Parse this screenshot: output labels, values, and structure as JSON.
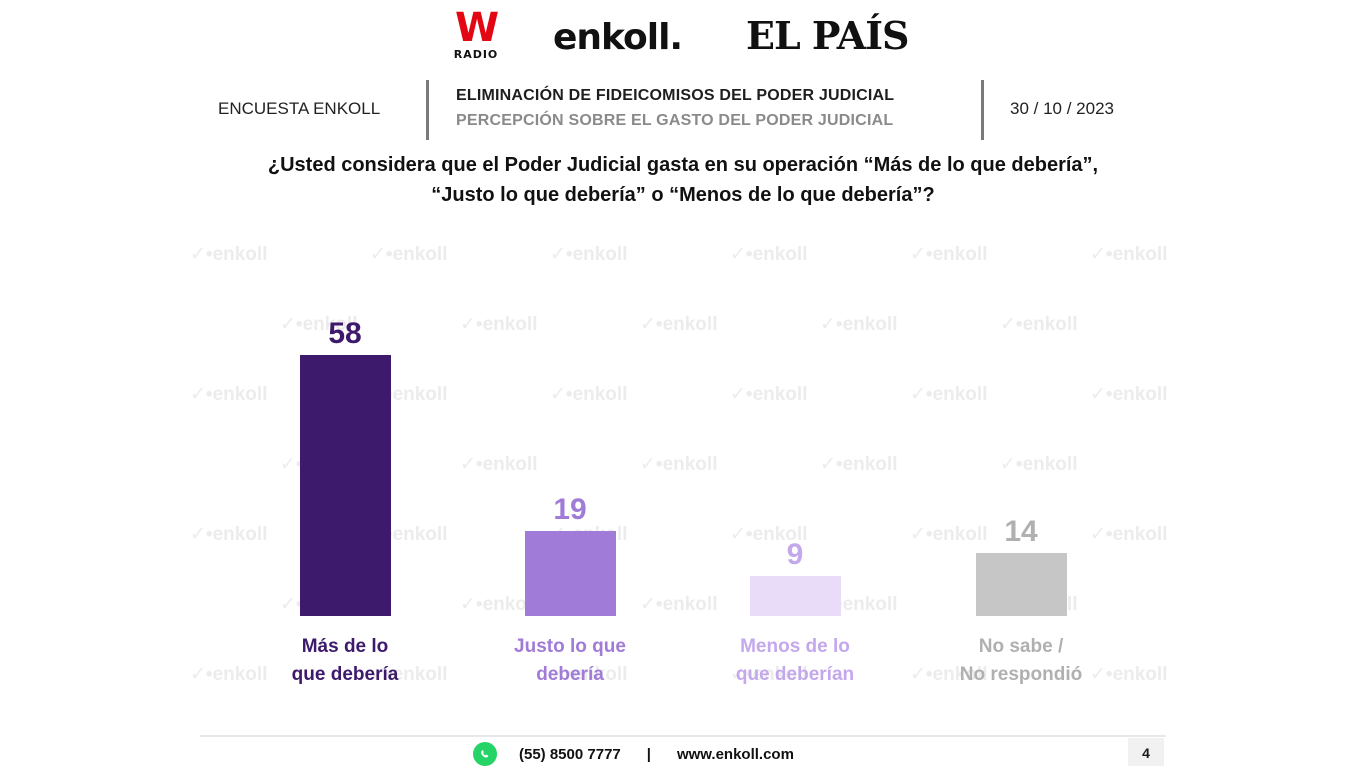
{
  "logos": {
    "w_mark": "W",
    "w_radio": "RADIO",
    "enkoll": "enkoll.",
    "elpais": "EL PAÍS"
  },
  "header": {
    "left_label": "ENCUESTA ENKOLL",
    "title": "ELIMINACIÓN DE FIDEICOMISOS DEL PODER JUDICIAL",
    "subtitle": "PERCEPCIÓN SOBRE EL GASTO DEL PODER JUDICIAL",
    "date": "30 / 10 / 2023"
  },
  "question": {
    "line1": "¿Usted considera que el Poder Judicial gasta en su operación “Más de lo que debería”,",
    "line2": "“Justo lo que debería” o “Menos de lo que debería”?"
  },
  "watermark": "enkoll",
  "chart_data": {
    "type": "bar",
    "title": "¿Usted considera que el Poder Judicial gasta en su operación “Más de lo que debería”, “Justo lo que debería” o “Menos de lo que debería”?",
    "categories": [
      "Más de lo\nque debería",
      "Justo lo que\ndebería",
      "Menos de lo\nque deberían",
      "No sabe /\nNo respondió"
    ],
    "values": [
      58,
      19,
      9,
      14
    ],
    "colors": [
      "#3d1a6b",
      "#a07bd8",
      "#e8dcf8",
      "#c6c6c6"
    ],
    "label_colors": [
      "#3d1a6b",
      "#a07bd8",
      "#c4a8ec",
      "#b0b0b0"
    ],
    "xlabel": "",
    "ylabel": "",
    "ylim": [
      0,
      60
    ],
    "grid": false,
    "legend": "none"
  },
  "footer": {
    "phone": "(55) 8500 7777",
    "separator": "|",
    "website": "www.enkoll.com",
    "page_number": "4"
  }
}
